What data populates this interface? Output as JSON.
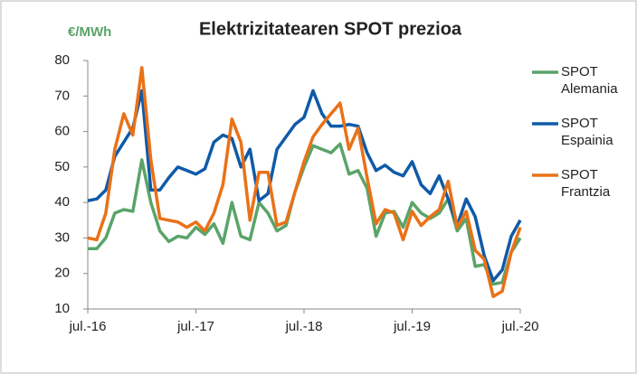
{
  "chart_data": {
    "type": "line",
    "title": "Elektrizitatearen SPOT prezioa",
    "y_axis_label": "€/MWh",
    "categories": [
      "jul.-16",
      null,
      null,
      null,
      null,
      null,
      null,
      null,
      null,
      null,
      null,
      null,
      "jul.-17",
      null,
      null,
      null,
      null,
      null,
      null,
      null,
      null,
      null,
      null,
      null,
      "jul.-18",
      null,
      null,
      null,
      null,
      null,
      null,
      null,
      null,
      null,
      null,
      null,
      "jul.-19",
      null,
      null,
      null,
      null,
      null,
      null,
      null,
      null,
      null,
      null,
      null,
      "jul.-20"
    ],
    "series": [
      {
        "name": "SPOT Alemania",
        "color": "#5aa469",
        "values": [
          27,
          27,
          30,
          37,
          38,
          37.5,
          52,
          40,
          32,
          29,
          30.5,
          30,
          33,
          31,
          34,
          28.5,
          40,
          30.5,
          29.5,
          40,
          37,
          32,
          33.5,
          43,
          50,
          56,
          55,
          54,
          56.5,
          48,
          49,
          44,
          30.5,
          37,
          37.5,
          33,
          40,
          37,
          35.5,
          37,
          41,
          32,
          35.5,
          22,
          22.5,
          17,
          17.5,
          26,
          30
        ]
      },
      {
        "name": "SPOT Espainia",
        "color": "#0f5aa8",
        "values": [
          40.5,
          41,
          43.5,
          53,
          57,
          61,
          71.5,
          43.5,
          43.5,
          47,
          50,
          49,
          48,
          49.5,
          57,
          59,
          58,
          50,
          55,
          40.5,
          42.5,
          55,
          58.5,
          62,
          64,
          71.5,
          65,
          61.5,
          61.5,
          62,
          61.5,
          54,
          49,
          50.5,
          48.5,
          47.5,
          51.5,
          45,
          42.5,
          47.5,
          41,
          33.5,
          41,
          36,
          25,
          18,
          21,
          30.5,
          35
        ]
      },
      {
        "name": "SPOT Frantzia",
        "color": "#ea7117",
        "values": [
          30,
          29.5,
          37,
          55,
          65,
          59,
          78,
          52,
          35.5,
          35,
          34.5,
          33,
          34.5,
          32,
          37,
          45,
          63.5,
          57,
          35,
          48.5,
          48.5,
          33.5,
          34.5,
          43,
          51.5,
          58.5,
          62,
          65,
          68,
          55,
          61,
          47,
          34,
          38,
          37,
          29.5,
          37.5,
          33.5,
          36,
          38,
          46,
          33,
          37.5,
          26.5,
          24,
          13.5,
          15,
          26,
          33
        ]
      }
    ],
    "ylim": [
      10,
      80
    ],
    "yticks": [
      10,
      20,
      30,
      40,
      50,
      60,
      70,
      80
    ],
    "grid": false,
    "legend": "right"
  }
}
